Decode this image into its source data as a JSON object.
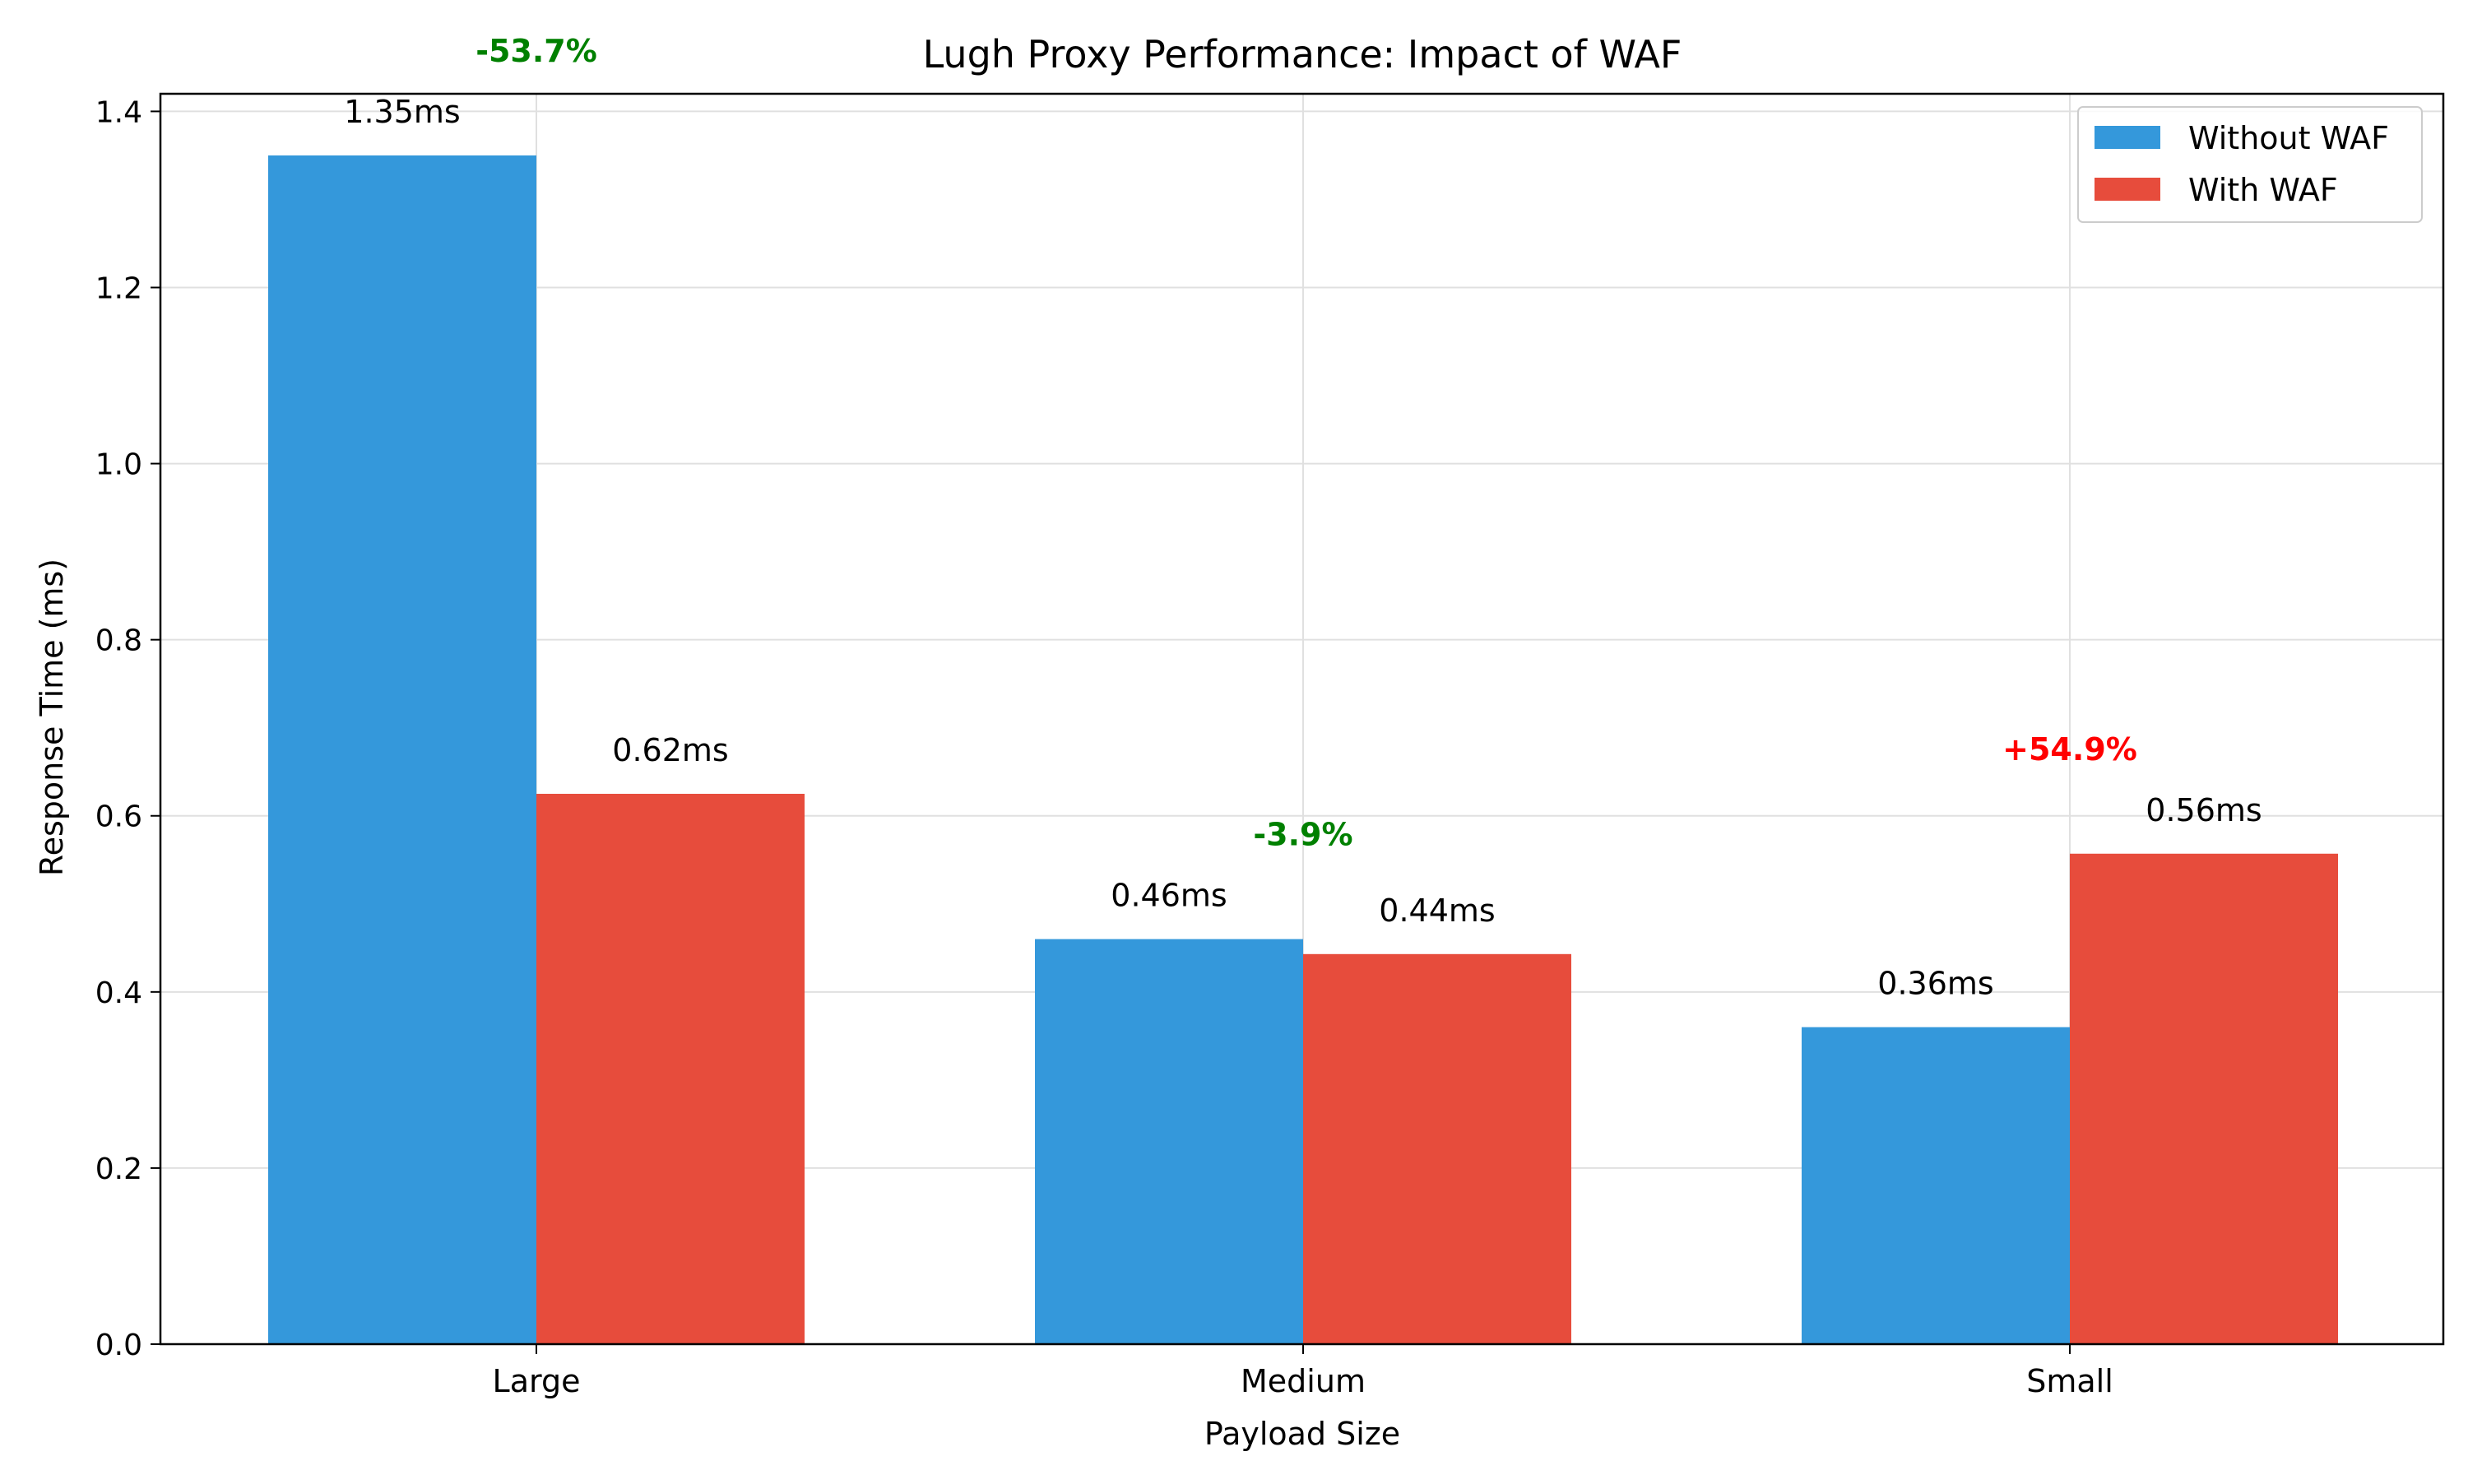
{
  "chart_data": {
    "type": "bar",
    "title": "Lugh Proxy Performance: Impact of WAF",
    "xlabel": "Payload Size",
    "ylabel": "Response Time (ms)",
    "categories": [
      "Large",
      "Medium",
      "Small"
    ],
    "series": [
      {
        "name": "Without WAF",
        "color": "#3498db",
        "values": [
          1.35,
          0.46,
          0.36
        ],
        "labels": [
          "1.35ms",
          "0.46ms",
          "0.36ms"
        ]
      },
      {
        "name": "With WAF",
        "color": "#e74c3c",
        "values": [
          0.625,
          0.443,
          0.557
        ],
        "labels": [
          "0.62ms",
          "0.44ms",
          "0.56ms"
        ]
      }
    ],
    "change_labels": [
      {
        "text": "-53.7%",
        "color": "#008000"
      },
      {
        "text": "-3.9%",
        "color": "#008000"
      },
      {
        "text": "+54.9%",
        "color": "#ff0000"
      }
    ],
    "ylim": [
      0,
      1.42
    ],
    "yticks": [
      0.0,
      0.2,
      0.4,
      0.6,
      0.8,
      1.0,
      1.2,
      1.4
    ],
    "ytick_labels": [
      "0.0",
      "0.2",
      "0.4",
      "0.6",
      "0.8",
      "1.0",
      "1.2",
      "1.4"
    ],
    "grid": true,
    "legend_position": "top-right"
  }
}
